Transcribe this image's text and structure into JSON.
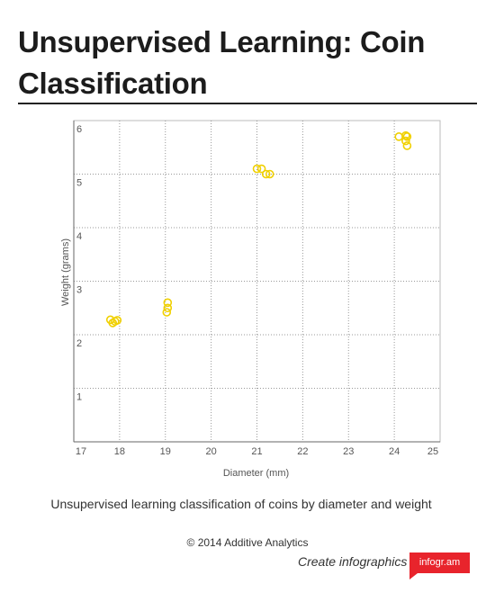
{
  "title": "Unsupervised Learning: Coin Classification",
  "caption": "Unsupervised learning classification of coins by diameter and weight",
  "copyright": "© 2014 Additive Analytics",
  "footer": {
    "create_label": "Create infographics",
    "brand_label": "infogr.am"
  },
  "colors": {
    "point": "#f0d000",
    "brand": "#e8242c"
  },
  "chart_data": {
    "type": "scatter",
    "title": "",
    "xlabel": "Diameter (mm)",
    "ylabel": "Weight (grams)",
    "xlim": [
      17,
      25
    ],
    "ylim": [
      0,
      6
    ],
    "xticks": [
      17,
      18,
      19,
      20,
      21,
      22,
      23,
      24,
      25
    ],
    "yticks": [
      1,
      2,
      3,
      4,
      5,
      6
    ],
    "grid": true,
    "legend": "none",
    "series": [
      {
        "points": [
          {
            "x": 17.8,
            "y": 2.28
          },
          {
            "x": 17.85,
            "y": 2.22
          },
          {
            "x": 17.9,
            "y": 2.25
          },
          {
            "x": 17.95,
            "y": 2.27
          },
          {
            "x": 19.05,
            "y": 2.6
          },
          {
            "x": 19.05,
            "y": 2.5
          },
          {
            "x": 19.03,
            "y": 2.42
          },
          {
            "x": 21.0,
            "y": 5.1
          },
          {
            "x": 21.1,
            "y": 5.1
          },
          {
            "x": 21.2,
            "y": 5.0
          },
          {
            "x": 21.28,
            "y": 5.0
          },
          {
            "x": 24.1,
            "y": 5.7
          },
          {
            "x": 24.25,
            "y": 5.72
          },
          {
            "x": 24.28,
            "y": 5.7
          },
          {
            "x": 24.25,
            "y": 5.62
          },
          {
            "x": 24.28,
            "y": 5.53
          }
        ]
      }
    ]
  }
}
